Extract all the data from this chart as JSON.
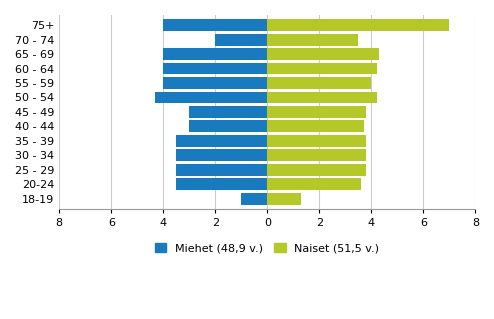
{
  "categories": [
    "75+",
    "70 - 74",
    "65 - 69",
    "60 - 64",
    "55 - 59",
    "50 - 54",
    "45 - 49",
    "40 - 44",
    "35 - 39",
    "30 - 34",
    "25 - 29",
    "20-24",
    "18-19"
  ],
  "men_values": [
    4.0,
    2.0,
    4.0,
    4.0,
    4.0,
    4.3,
    3.0,
    3.0,
    3.5,
    3.5,
    3.5,
    3.5,
    1.0
  ],
  "women_values": [
    7.0,
    3.5,
    4.3,
    4.2,
    4.0,
    4.2,
    3.8,
    3.7,
    3.8,
    3.8,
    3.8,
    3.6,
    1.3
  ],
  "men_color": "#1a7abf",
  "women_color": "#b5c829",
  "xlim": [
    -8,
    8
  ],
  "xticks": [
    -8,
    -6,
    -4,
    -2,
    0,
    2,
    4,
    6,
    8
  ],
  "xticklabels": [
    "8",
    "6",
    "4",
    "2",
    "0",
    "2",
    "4",
    "6",
    "8"
  ],
  "men_label": "Miehet (48,9 v.)",
  "women_label": "Naiset (51,5 v.)",
  "grid_color": "#cccccc",
  "background_color": "#ffffff",
  "bar_height": 0.82,
  "tick_fontsize": 8,
  "legend_fontsize": 8
}
